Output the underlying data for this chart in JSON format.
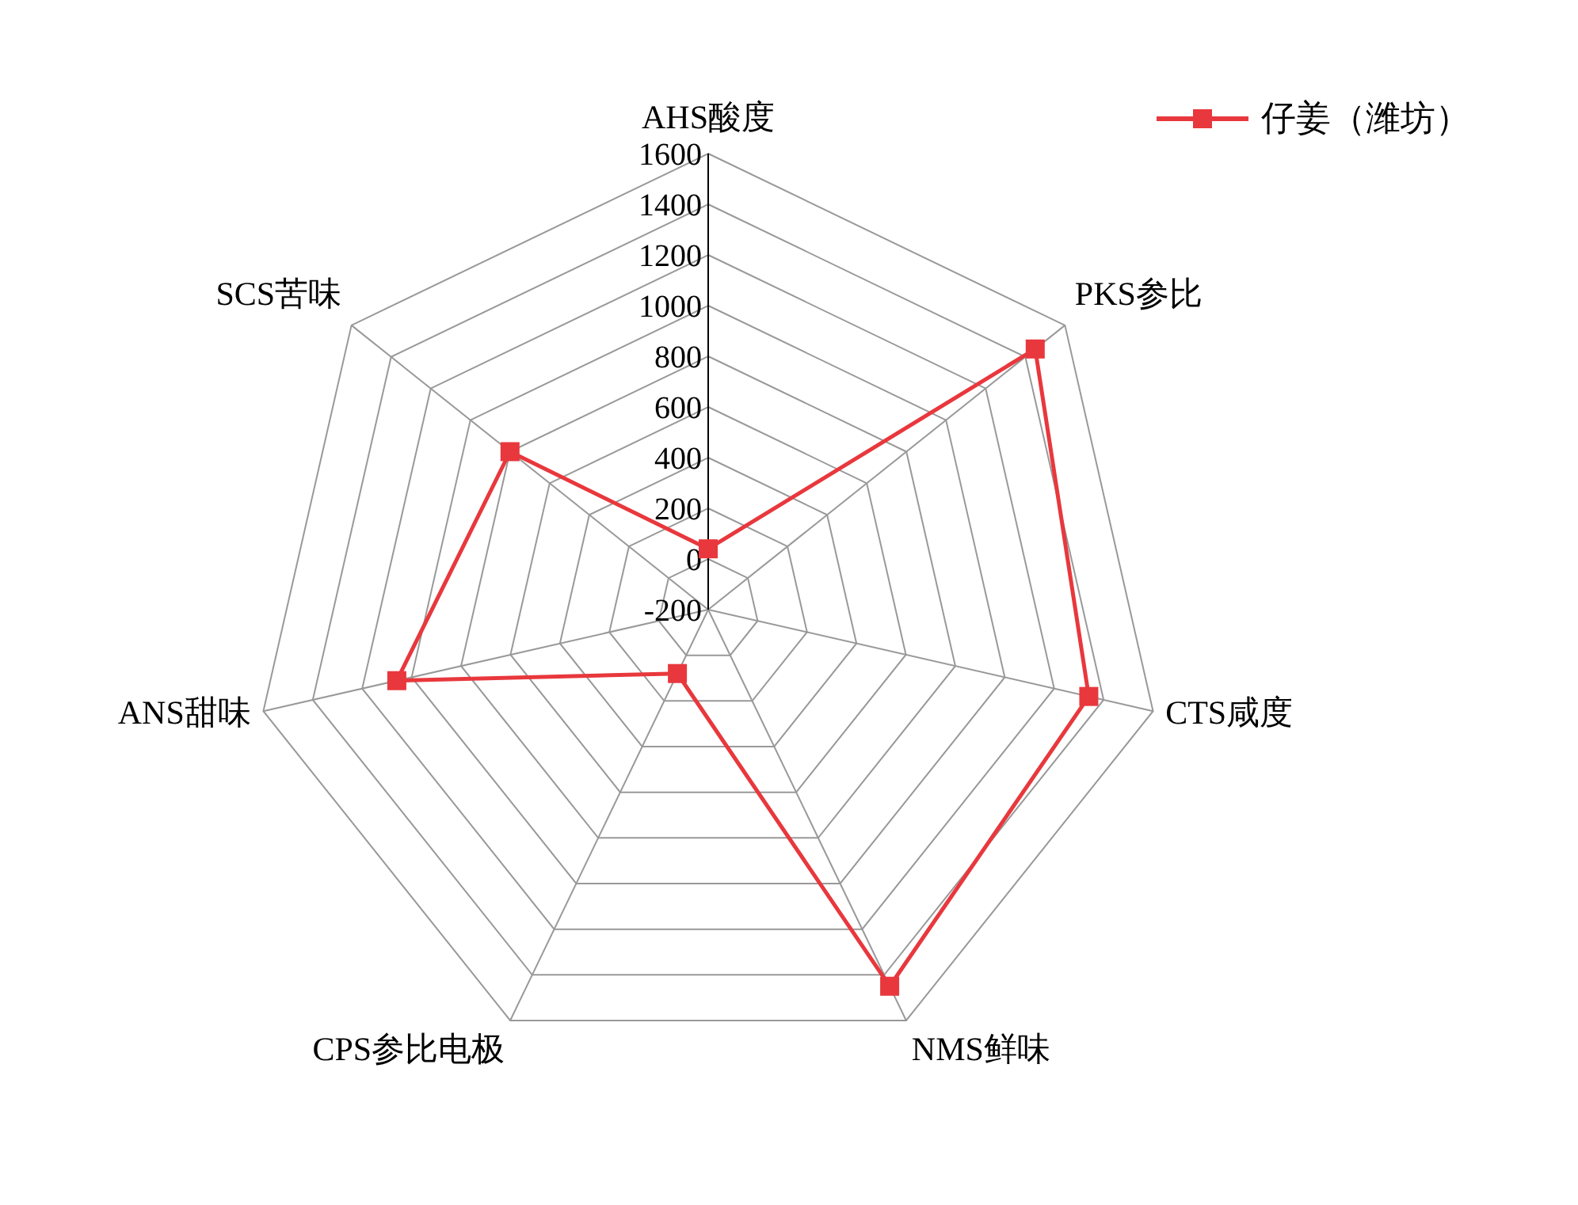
{
  "chart_data": {
    "type": "radar",
    "categories": [
      "AHS酸度",
      "PKS参比",
      "CTS咸度",
      "NMS鲜味",
      "CPS参比电极",
      "ANS甜味",
      "SCS苦味"
    ],
    "series": [
      {
        "name": "仔姜（潍坊）",
        "color": "#e8383d",
        "values": [
          40,
          1450,
          1340,
          1450,
          80,
          1060,
          800
        ]
      }
    ],
    "ylim": [
      -200,
      1600
    ],
    "yticks": [
      -200,
      0,
      200,
      400,
      600,
      800,
      1000,
      1200,
      1400,
      1600
    ],
    "grid": true,
    "legend": "top right",
    "marker": "square",
    "line_style": "solid"
  }
}
